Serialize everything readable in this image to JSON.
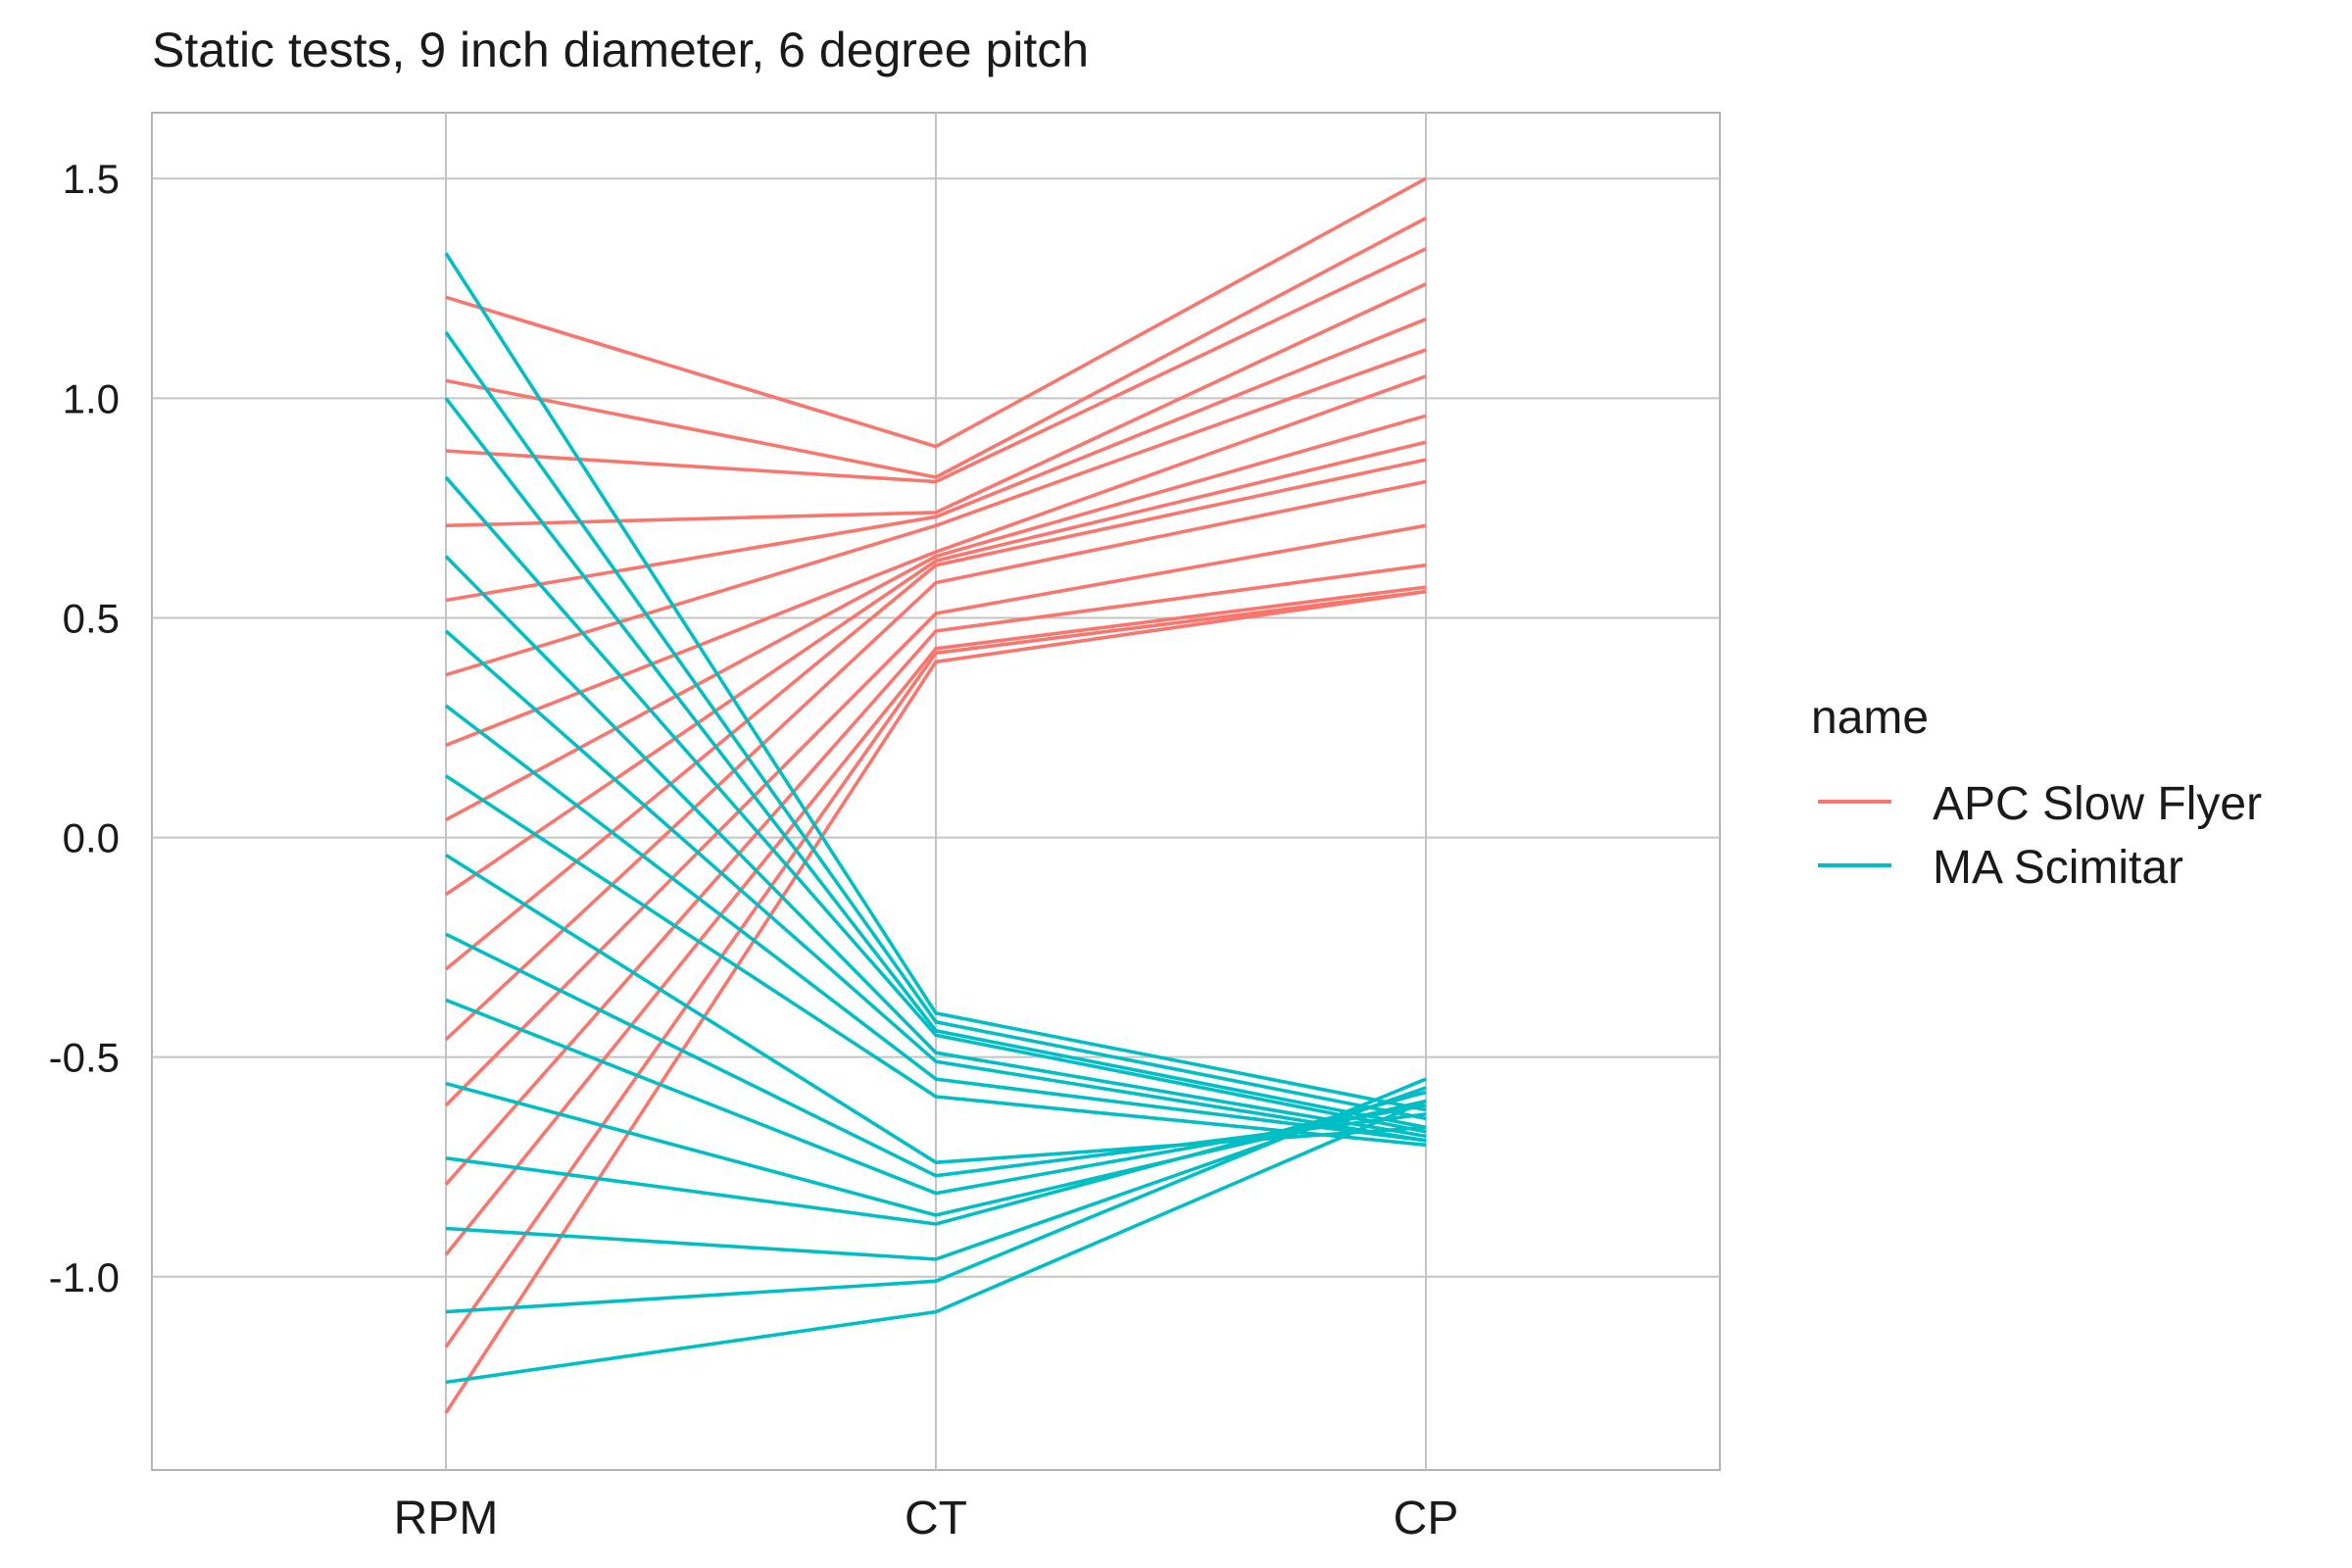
{
  "chart_data": {
    "type": "line",
    "title": "Static tests, 9 inch diameter, 6 degree pitch",
    "xlabel": "",
    "ylabel": "",
    "categories": [
      "RPM",
      "CT",
      "CP"
    ],
    "yticks": [
      "1.5",
      "1.0",
      "0.5",
      "0.0",
      "-0.5",
      "-1.0"
    ],
    "ytick_values": [
      1.5,
      1.0,
      0.5,
      0.0,
      -0.5,
      -1.0
    ],
    "ylim": [
      -1.44,
      1.65
    ],
    "grid": true,
    "legend": {
      "title": "name",
      "placement": "right",
      "entries": [
        {
          "label": "APC Slow Flyer",
          "color": "#F8766D"
        },
        {
          "label": "MA Scimitar",
          "color": "#00BFC4"
        }
      ]
    },
    "series": [
      {
        "name": "APC Slow Flyer",
        "color": "#F8766D",
        "lines": [
          [
            1.23,
            0.89,
            1.5
          ],
          [
            1.04,
            0.82,
            1.41
          ],
          [
            0.88,
            0.81,
            1.34
          ],
          [
            0.71,
            0.74,
            1.26
          ],
          [
            0.54,
            0.73,
            1.18
          ],
          [
            0.37,
            0.71,
            1.11
          ],
          [
            0.21,
            0.65,
            1.05
          ],
          [
            0.04,
            0.64,
            0.96
          ],
          [
            -0.13,
            0.63,
            0.9
          ],
          [
            -0.3,
            0.62,
            0.86
          ],
          [
            -0.46,
            0.58,
            0.81
          ],
          [
            -0.61,
            0.51,
            0.71
          ],
          [
            -0.79,
            0.47,
            0.62
          ],
          [
            -0.95,
            0.43,
            0.57
          ],
          [
            -1.16,
            0.42,
            0.56
          ],
          [
            -1.31,
            0.4,
            0.56
          ]
        ]
      },
      {
        "name": "MA Scimitar",
        "color": "#00BFC4",
        "lines": [
          [
            1.33,
            -0.4,
            -0.62
          ],
          [
            1.15,
            -0.42,
            -0.64
          ],
          [
            1.0,
            -0.44,
            -0.66
          ],
          [
            0.82,
            -0.45,
            -0.67
          ],
          [
            0.64,
            -0.49,
            -0.68
          ],
          [
            0.47,
            -0.51,
            -0.69
          ],
          [
            0.3,
            -0.55,
            -0.69
          ],
          [
            0.14,
            -0.59,
            -0.7
          ],
          [
            -0.04,
            -0.74,
            -0.66
          ],
          [
            -0.22,
            -0.77,
            -0.63
          ],
          [
            -0.37,
            -0.81,
            -0.61
          ],
          [
            -0.56,
            -0.86,
            -0.6
          ],
          [
            -0.73,
            -0.88,
            -0.58
          ],
          [
            -0.89,
            -0.96,
            -0.57
          ],
          [
            -1.08,
            -1.01,
            -0.55
          ],
          [
            -1.24,
            -1.08,
            -0.6
          ]
        ]
      }
    ]
  }
}
